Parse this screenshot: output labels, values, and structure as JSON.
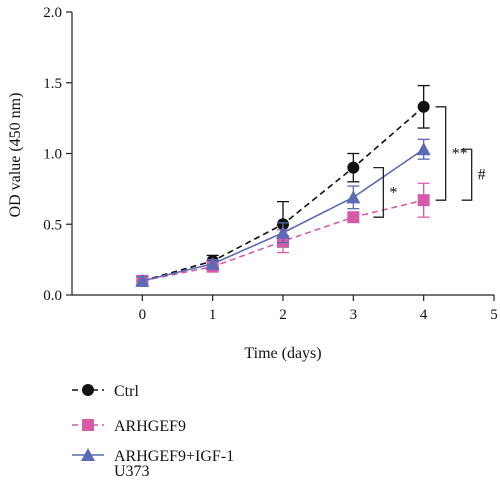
{
  "chart_data": {
    "type": "line",
    "xlabel": "Time (days)",
    "ylabel": "OD value (450 nm)",
    "xlim": [
      -1,
      5
    ],
    "ylim": [
      0,
      2.0
    ],
    "x_ticks": [
      "0",
      "1",
      "2",
      "3",
      "4",
      "5"
    ],
    "y_ticks": [
      "0.0",
      "0.5",
      "1.0",
      "1.5",
      "2.0"
    ],
    "grid": false,
    "legend_position": "bottom-left",
    "legend_note": "U373",
    "x": [
      0,
      1,
      2,
      3,
      4
    ],
    "series": [
      {
        "name": "Ctrl",
        "values": [
          0.1,
          0.24,
          0.5,
          0.9,
          1.33
        ],
        "errors": [
          0.03,
          0.04,
          0.16,
          0.1,
          0.15
        ],
        "color": "#111111",
        "marker": "circle",
        "line": "dashed"
      },
      {
        "name": "ARHGEF9",
        "values": [
          0.1,
          0.2,
          0.38,
          0.55,
          0.67
        ],
        "errors": [
          0.03,
          0.03,
          0.08,
          0.03,
          0.12
        ],
        "color": "#d75aa8",
        "marker": "square",
        "line": "dashed"
      },
      {
        "name": "ARHGEF9+IGF-1",
        "values": [
          0.1,
          0.22,
          0.44,
          0.69,
          1.03
        ],
        "errors": [
          0.03,
          0.03,
          0.07,
          0.08,
          0.07
        ],
        "color": "#5a6ab5",
        "marker": "triangle",
        "line": "solid"
      }
    ],
    "annotations": [
      {
        "label": "*",
        "x": 3,
        "from": 0.55,
        "to": 0.9
      },
      {
        "label": "**",
        "x": 4,
        "from": 0.67,
        "to": 1.33,
        "slot": 1
      },
      {
        "label": "#",
        "x": 4,
        "from": 0.67,
        "to": 1.03,
        "slot": 2
      }
    ]
  }
}
